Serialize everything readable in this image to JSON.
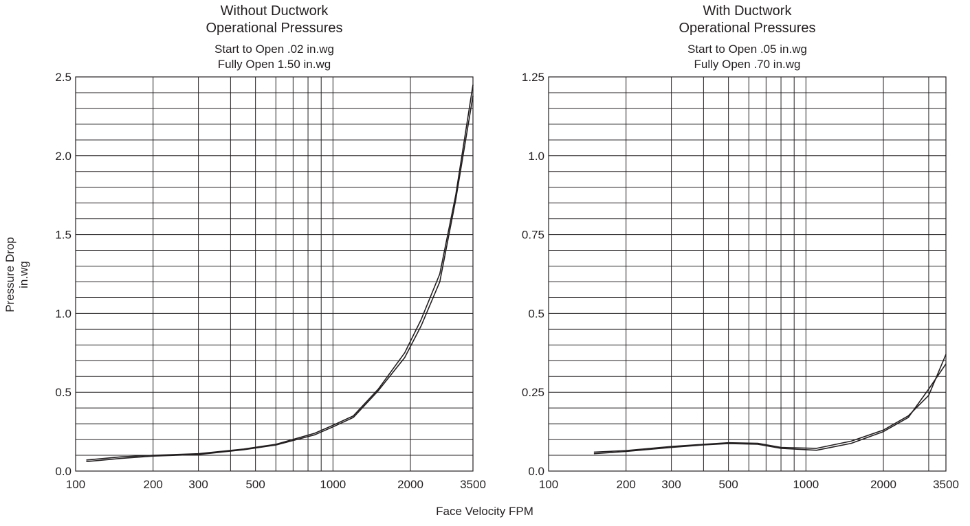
{
  "figure": {
    "xlabel": "Face Velocity FPM",
    "ylabel_line1": "Pressure Drop",
    "ylabel_line2": "in.wg"
  },
  "chart_data": [
    {
      "type": "line",
      "title_lines": [
        "Without Ductwork",
        "Operational Pressures"
      ],
      "subtitle_lines": [
        "Start to Open .02 in.wg",
        "Fully Open 1.50 in.wg"
      ],
      "x_scale": "log",
      "xlim": [
        100,
        3500
      ],
      "x_ticks": [
        100,
        200,
        300,
        500,
        1000,
        2000,
        3500
      ],
      "x_tick_labels": [
        "100",
        "200",
        "300",
        "500",
        "1000",
        "2000",
        "3500"
      ],
      "x_minor_gridlines": [
        400,
        600,
        700,
        800,
        900
      ],
      "ylim": [
        0,
        2.5
      ],
      "y_ticks": [
        0,
        0.5,
        1.0,
        1.5,
        2.0,
        2.5
      ],
      "y_tick_labels": [
        "0.0",
        "0.5",
        "1.0",
        "1.5",
        "2.0",
        "2.5"
      ],
      "y_minor_step": 0.1,
      "grid": true,
      "series": [
        {
          "x": [
            110,
            150,
            200,
            300,
            450,
            600,
            850,
            1000,
            1200,
            1500,
            1900,
            2200,
            2600,
            3000,
            3500
          ],
          "y": [
            0.07,
            0.09,
            0.1,
            0.11,
            0.14,
            0.17,
            0.24,
            0.29,
            0.35,
            0.52,
            0.75,
            0.96,
            1.25,
            1.75,
            2.45
          ]
        },
        {
          "x": [
            110,
            150,
            200,
            300,
            450,
            600,
            850,
            1000,
            1200,
            1500,
            1900,
            2200,
            2600,
            3000,
            3500
          ],
          "y": [
            0.06,
            0.08,
            0.095,
            0.105,
            0.135,
            0.165,
            0.23,
            0.28,
            0.34,
            0.51,
            0.72,
            0.92,
            1.2,
            1.72,
            2.38
          ]
        }
      ]
    },
    {
      "type": "line",
      "title_lines": [
        "With Ductwork",
        "Operational Pressures"
      ],
      "subtitle_lines": [
        "Start to Open .05 in.wg",
        "Fully Open .70 in.wg"
      ],
      "x_scale": "log",
      "xlim": [
        100,
        3500
      ],
      "x_ticks": [
        100,
        200,
        300,
        500,
        1000,
        2000,
        3500
      ],
      "x_tick_labels": [
        "100",
        "200",
        "300",
        "500",
        "1000",
        "2000",
        "3500"
      ],
      "x_minor_gridlines": [
        400,
        600,
        700,
        800,
        900,
        3000
      ],
      "ylim": [
        0,
        1.25
      ],
      "y_ticks": [
        0,
        0.25,
        0.5,
        0.75,
        1.0,
        1.25
      ],
      "y_tick_labels": [
        "0.0",
        "0.25",
        "0.5",
        "0.75",
        "1.0",
        "1.25"
      ],
      "y_minor_step": 0.05,
      "grid": true,
      "series": [
        {
          "x": [
            150,
            200,
            300,
            400,
            500,
            650,
            800,
            1100,
            1500,
            2000,
            2500,
            3000,
            3500
          ],
          "y": [
            0.06,
            0.065,
            0.078,
            0.085,
            0.09,
            0.088,
            0.075,
            0.072,
            0.095,
            0.13,
            0.175,
            0.24,
            0.37
          ]
        },
        {
          "x": [
            150,
            200,
            300,
            400,
            500,
            650,
            800,
            1100,
            1500,
            2000,
            2500,
            3000,
            3500
          ],
          "y": [
            0.055,
            0.062,
            0.075,
            0.083,
            0.087,
            0.085,
            0.072,
            0.066,
            0.088,
            0.125,
            0.17,
            0.26,
            0.34
          ]
        }
      ]
    }
  ]
}
